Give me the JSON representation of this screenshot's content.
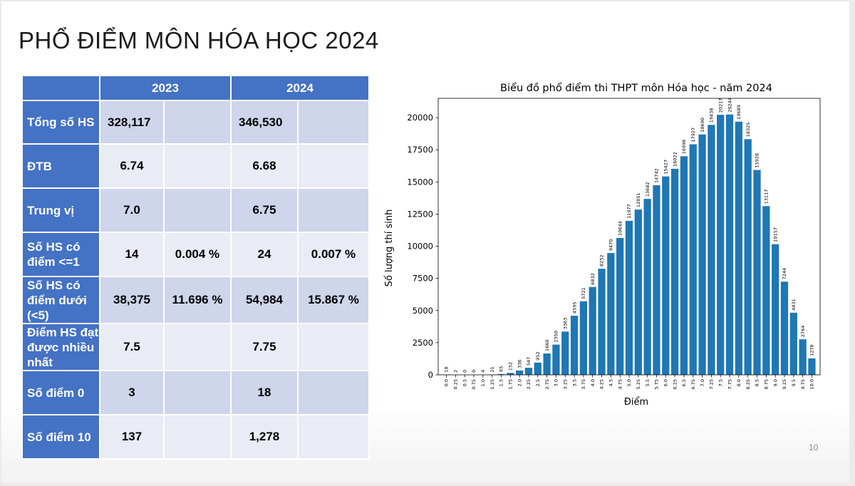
{
  "slide": {
    "title": "PHỔ ĐIỂM MÔN HÓA HỌC 2024",
    "page_number": "10"
  },
  "table": {
    "header": [
      "2023",
      "2024"
    ],
    "rows": [
      {
        "label": "Tổng số HS",
        "v2023": "328,117",
        "p2023": "",
        "v2024": "346,530",
        "p2024": ""
      },
      {
        "label": "ĐTB",
        "v2023": "6.74",
        "p2023": "",
        "v2024": "6.68",
        "p2024": ""
      },
      {
        "label": "Trung vị",
        "v2023": "7.0",
        "p2023": "",
        "v2024": "6.75",
        "p2024": ""
      },
      {
        "label": "Số HS có điểm <=1",
        "v2023": "14",
        "p2023": "0.004 %",
        "v2024": "24",
        "p2024": "0.007 %"
      },
      {
        "label": "Số HS có điểm dưới (<5)",
        "v2023": "38,375",
        "p2023": "11.696 %",
        "v2024": "54,984",
        "p2024": "15.867 %"
      },
      {
        "label": "Điểm HS đạt được nhiều nhất",
        "v2023": "7.5",
        "p2023": "",
        "v2024": "7.75",
        "p2024": ""
      },
      {
        "label": "Số điểm 0",
        "v2023": "3",
        "p2023": "",
        "v2024": "18",
        "p2024": ""
      },
      {
        "label": "Số điểm 10",
        "v2023": "137",
        "p2023": "",
        "v2024": "1,278",
        "p2024": ""
      }
    ],
    "highlight_color": "#e00000",
    "highlight_color_dark": "#c00000"
  },
  "chart_data": {
    "type": "bar",
    "title": "Biểu đồ phổ điểm thi THPT môn Hóa học - năm 2024",
    "xlabel": "Điểm",
    "ylabel": "Số lượng thí sinh",
    "categories": [
      "0.0",
      "0.25",
      "0.5",
      "0.75",
      "1.0",
      "1.25",
      "1.5",
      "1.75",
      "2.0",
      "2.25",
      "2.5",
      "2.75",
      "3.0",
      "3.25",
      "3.5",
      "3.75",
      "4.0",
      "4.25",
      "4.5",
      "4.75",
      "5.0",
      "5.25",
      "5.5",
      "5.75",
      "6.0",
      "6.25",
      "6.5",
      "6.75",
      "7.0",
      "7.25",
      "7.5",
      "7.75",
      "8.0",
      "8.25",
      "8.5",
      "8.75",
      "9.0",
      "9.25",
      "9.5",
      "9.75",
      "10.0"
    ],
    "values": [
      18,
      2,
      0,
      0,
      4,
      21,
      65,
      152,
      336,
      547,
      952,
      1660,
      2350,
      3363,
      4595,
      5721,
      6832,
      8252,
      9470,
      10644,
      11977,
      12851,
      13682,
      14742,
      15427,
      16022,
      16996,
      17927,
      18690,
      19438,
      20217,
      20244,
      19689,
      18325,
      15928,
      13117,
      10157,
      7244,
      4831,
      2764,
      1278
    ],
    "yticks": [
      0,
      2500,
      5000,
      7500,
      10000,
      12500,
      15000,
      17500,
      20000
    ],
    "ylim": [
      0,
      21500
    ],
    "bar_color": "#1f77b4",
    "data_labels": true,
    "grid": false,
    "legend": "none"
  }
}
